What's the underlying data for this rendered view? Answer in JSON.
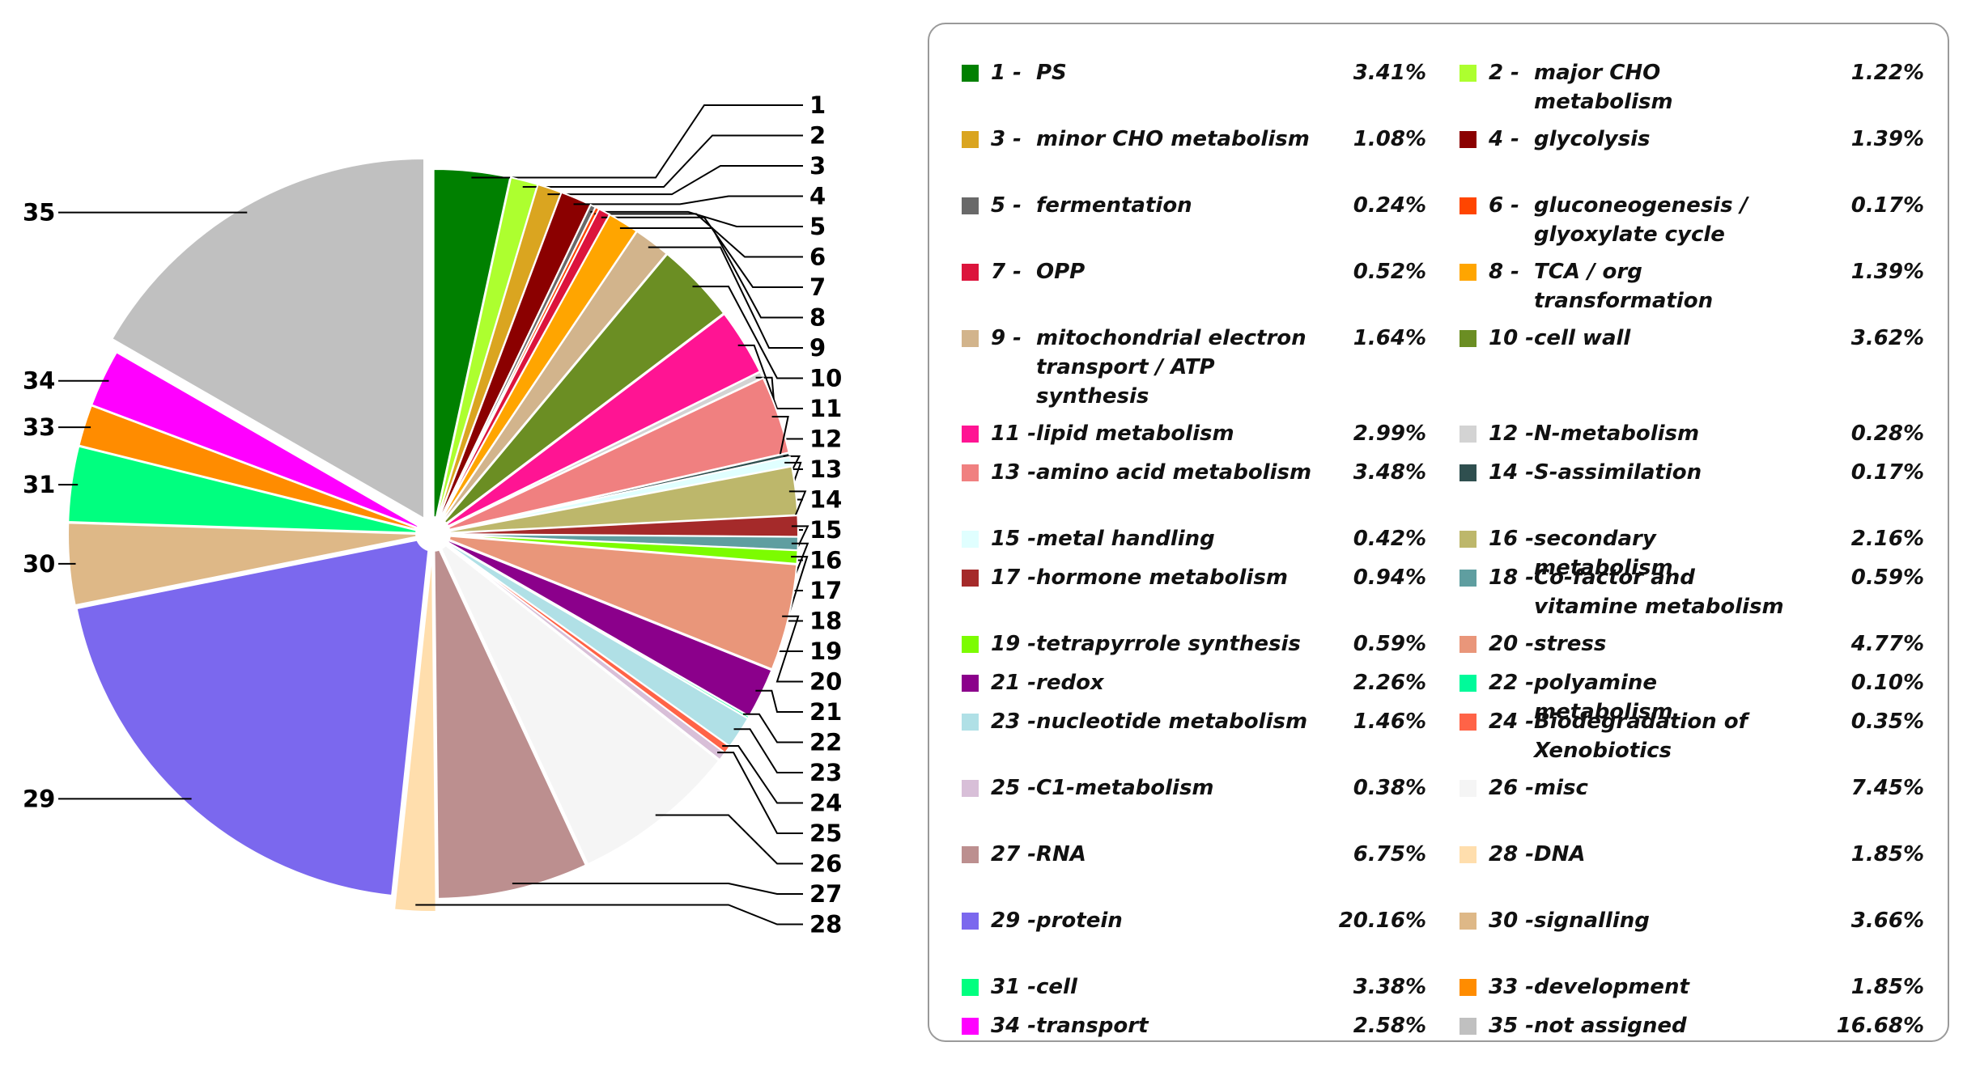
{
  "chart_data": {
    "type": "pie",
    "title": "",
    "legend": "right",
    "slices": [
      {
        "id": "1",
        "name": "PS",
        "value": 3.41,
        "pct": "3.41%",
        "color": "#008000"
      },
      {
        "id": "2",
        "name": "major CHO metabolism",
        "value": 1.22,
        "pct": "1.22%",
        "color": "#adff2f"
      },
      {
        "id": "3",
        "name": "minor CHO metabolism",
        "value": 1.08,
        "pct": "1.08%",
        "color": "#daa520"
      },
      {
        "id": "4",
        "name": "glycolysis",
        "value": 1.39,
        "pct": "1.39%",
        "color": "#8b0000"
      },
      {
        "id": "5",
        "name": "fermentation",
        "value": 0.24,
        "pct": "0.24%",
        "color": "#696969"
      },
      {
        "id": "6",
        "name": "gluconeogenesis / glyoxylate cycle",
        "value": 0.17,
        "pct": "0.17%",
        "color": "#ff4500"
      },
      {
        "id": "7",
        "name": "OPP",
        "value": 0.52,
        "pct": "0.52%",
        "color": "#dc143c"
      },
      {
        "id": "8",
        "name": "TCA / org transformation",
        "value": 1.39,
        "pct": "1.39%",
        "color": "#ffa500"
      },
      {
        "id": "9",
        "name": "mitochondrial electron transport / ATP synthesis",
        "value": 1.64,
        "pct": "1.64%",
        "color": "#d2b48c"
      },
      {
        "id": "10",
        "name": "cell wall",
        "value": 3.62,
        "pct": "3.62%",
        "color": "#6b8e23"
      },
      {
        "id": "11",
        "name": "lipid metabolism",
        "value": 2.99,
        "pct": "2.99%",
        "color": "#ff1493"
      },
      {
        "id": "12",
        "name": "N-metabolism",
        "value": 0.28,
        "pct": "0.28%",
        "color": "#d3d3d3"
      },
      {
        "id": "13",
        "name": "amino acid metabolism",
        "value": 3.48,
        "pct": "3.48%",
        "color": "#f08080"
      },
      {
        "id": "14",
        "name": "S-assimilation",
        "value": 0.17,
        "pct": "0.17%",
        "color": "#2f4f4f"
      },
      {
        "id": "15",
        "name": "metal handling",
        "value": 0.42,
        "pct": "0.42%",
        "color": "#e0ffff"
      },
      {
        "id": "16",
        "name": "secondary metabolism",
        "value": 2.16,
        "pct": "2.16%",
        "color": "#bdb76b"
      },
      {
        "id": "17",
        "name": "hormone metabolism",
        "value": 0.94,
        "pct": "0.94%",
        "color": "#a52a2a"
      },
      {
        "id": "18",
        "name": "Co-factor and vitamine metabolism",
        "value": 0.59,
        "pct": "0.59%",
        "color": "#5f9ea0"
      },
      {
        "id": "19",
        "name": "tetrapyrrole synthesis",
        "value": 0.59,
        "pct": "0.59%",
        "color": "#7cfc00"
      },
      {
        "id": "20",
        "name": "stress",
        "value": 4.77,
        "pct": "4.77%",
        "color": "#e9967a"
      },
      {
        "id": "21",
        "name": "redox",
        "value": 2.26,
        "pct": "2.26%",
        "color": "#8b008b"
      },
      {
        "id": "22",
        "name": "polyamine metabolism",
        "value": 0.1,
        "pct": "0.10%",
        "color": "#00fa9a"
      },
      {
        "id": "23",
        "name": "nucleotide metabolism",
        "value": 1.46,
        "pct": "1.46%",
        "color": "#b0e0e6"
      },
      {
        "id": "24",
        "name": "Biodegradation of Xenobiotics",
        "value": 0.35,
        "pct": "0.35%",
        "color": "#ff6347"
      },
      {
        "id": "25",
        "name": "C1-metabolism",
        "value": 0.38,
        "pct": "0.38%",
        "color": "#d8bfd8"
      },
      {
        "id": "26",
        "name": "misc",
        "value": 7.45,
        "pct": "7.45%",
        "color": "#f5f5f5"
      },
      {
        "id": "27",
        "name": "RNA",
        "value": 6.75,
        "pct": "6.75%",
        "color": "#bc8f8f"
      },
      {
        "id": "28",
        "name": "DNA",
        "value": 1.85,
        "pct": "1.85%",
        "color": "#ffdead"
      },
      {
        "id": "29",
        "name": "protein",
        "value": 20.16,
        "pct": "20.16%",
        "color": "#7b68ee"
      },
      {
        "id": "30",
        "name": "signalling",
        "value": 3.66,
        "pct": "3.66%",
        "color": "#deb887"
      },
      {
        "id": "31",
        "name": "cell",
        "value": 3.38,
        "pct": "3.38%",
        "color": "#00ff7f"
      },
      {
        "id": "33",
        "name": "development",
        "value": 1.85,
        "pct": "1.85%",
        "color": "#ff8c00"
      },
      {
        "id": "34",
        "name": "transport",
        "value": 2.58,
        "pct": "2.58%",
        "color": "#ff00ff"
      },
      {
        "id": "35",
        "name": "not assigned",
        "value": 16.68,
        "pct": "16.68%",
        "color": "#c0c0c0"
      }
    ],
    "legend_entries": [
      {
        "num": "1 -",
        "name": "PS",
        "pct": "3.41%"
      },
      {
        "num": "2 -",
        "name": "major CHO metabolism",
        "pct": "1.22%"
      },
      {
        "num": "3 -",
        "name": "minor CHO metabolism",
        "pct": "1.08%"
      },
      {
        "num": "4 -",
        "name": "glycolysis",
        "pct": "1.39%"
      },
      {
        "num": "5 -",
        "name": "fermentation",
        "pct": "0.24%"
      },
      {
        "num": "6 -",
        "name": "gluconeogenesis / glyoxylate cycle",
        "pct": "0.17%"
      },
      {
        "num": "7 -",
        "name": "OPP",
        "pct": "0.52%"
      },
      {
        "num": "8 -",
        "name": "TCA / org transformation",
        "pct": "1.39%"
      },
      {
        "num": "9 -",
        "name": "mitochondrial electron transport / ATP synthesis",
        "pct": "1.64%"
      },
      {
        "num": "10 -",
        "name": "cell wall",
        "pct": "3.62%"
      },
      {
        "num": "11 -",
        "name": "lipid metabolism",
        "pct": "2.99%"
      },
      {
        "num": "12 -",
        "name": "N-metabolism",
        "pct": "0.28%"
      },
      {
        "num": "13 -",
        "name": "amino acid metabolism",
        "pct": "3.48%"
      },
      {
        "num": "14 -",
        "name": "S-assimilation",
        "pct": "0.17%"
      },
      {
        "num": "15 -",
        "name": "metal handling",
        "pct": "0.42%"
      },
      {
        "num": "16 -",
        "name": "secondary metabolism",
        "pct": "2.16%"
      },
      {
        "num": "17 -",
        "name": "hormone metabolism",
        "pct": "0.94%"
      },
      {
        "num": "18 -",
        "name": "Co-factor and vitamine metabolism",
        "pct": "0.59%"
      },
      {
        "num": "19 -",
        "name": "tetrapyrrole synthesis",
        "pct": "0.59%"
      },
      {
        "num": "20 -",
        "name": "stress",
        "pct": "4.77%"
      },
      {
        "num": "21 -",
        "name": "redox",
        "pct": "2.26%"
      },
      {
        "num": "22 -",
        "name": "polyamine metabolism",
        "pct": "0.10%"
      },
      {
        "num": "23 -",
        "name": "nucleotide metabolism",
        "pct": "1.46%"
      },
      {
        "num": "24 -",
        "name": "Biodegradation of Xenobiotics",
        "pct": "0.35%"
      },
      {
        "num": "25 -",
        "name": "C1-metabolism",
        "pct": "0.38%"
      },
      {
        "num": "26 -",
        "name": "misc",
        "pct": "7.45%"
      },
      {
        "num": "27 -",
        "name": "RNA",
        "pct": "6.75%"
      },
      {
        "num": "28 -",
        "name": "DNA",
        "pct": "1.85%"
      },
      {
        "num": "29 -",
        "name": "protein",
        "pct": "20.16%"
      },
      {
        "num": "30 -",
        "name": "signalling",
        "pct": "3.66%"
      },
      {
        "num": "31 -",
        "name": "cell",
        "pct": "3.38%"
      },
      {
        "num": "33 -",
        "name": "development",
        "pct": "1.85%"
      },
      {
        "num": "34 -",
        "name": "transport",
        "pct": "2.58%"
      },
      {
        "num": "35 -",
        "name": "not assigned",
        "pct": "16.68%"
      }
    ],
    "callout_labels": [
      "1",
      "2",
      "3",
      "4",
      "5",
      "6",
      "7",
      "8",
      "9",
      "10",
      "11",
      "12",
      "13",
      "14",
      "15",
      "16",
      "17",
      "18",
      "19",
      "20",
      "21",
      "22",
      "23",
      "24",
      "25",
      "26",
      "27",
      "28",
      "29",
      "30",
      "31",
      "33",
      "34",
      "35"
    ],
    "exploded_slices": [
      "28",
      "35"
    ]
  }
}
